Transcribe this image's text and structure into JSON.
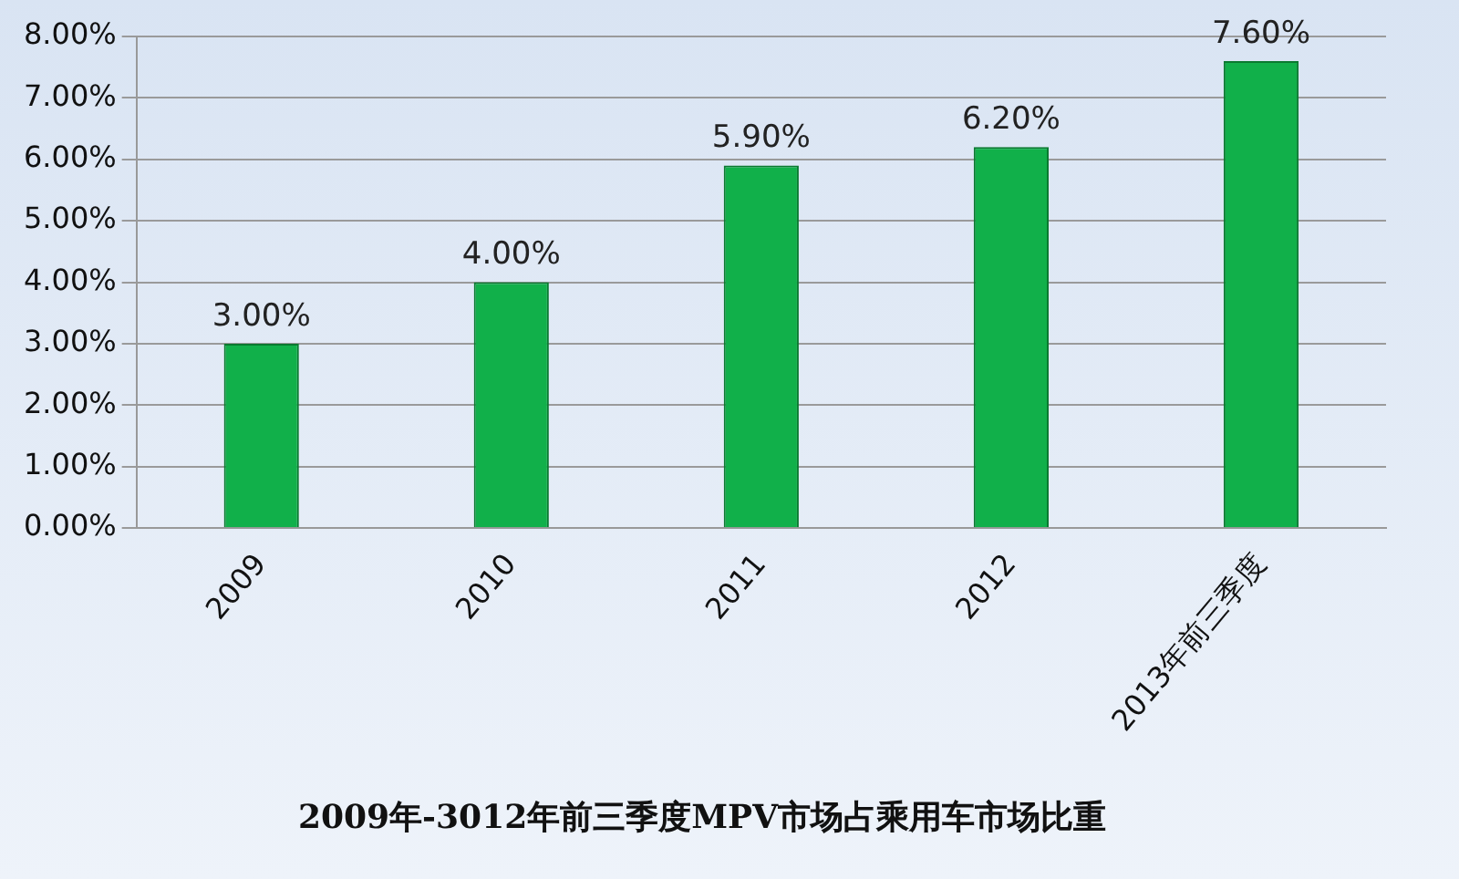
{
  "chart_data": {
    "type": "bar",
    "title": "2009年-3012年前三季度MPV市场占乘用车市场比重",
    "categories": [
      "2009",
      "2010",
      "2011",
      "2012",
      "2013年前三季度"
    ],
    "values": [
      3.0,
      4.0,
      5.9,
      6.2,
      7.6
    ],
    "value_labels": [
      "3.00%",
      "4.00%",
      "5.90%",
      "6.20%",
      "7.60%"
    ],
    "color": "#11b04a",
    "ylim": [
      0,
      8
    ],
    "yticks": [
      {
        "value": 0,
        "label": "0.00%"
      },
      {
        "value": 1,
        "label": "1.00%"
      },
      {
        "value": 2,
        "label": "2.00%"
      },
      {
        "value": 3,
        "label": "3.00%"
      },
      {
        "value": 4,
        "label": "4.00%"
      },
      {
        "value": 5,
        "label": "5.00%"
      },
      {
        "value": 6,
        "label": "6.00%"
      },
      {
        "value": 7,
        "label": "7.00%"
      },
      {
        "value": 8,
        "label": "8.00%"
      }
    ],
    "grid": "y",
    "legend": false
  }
}
